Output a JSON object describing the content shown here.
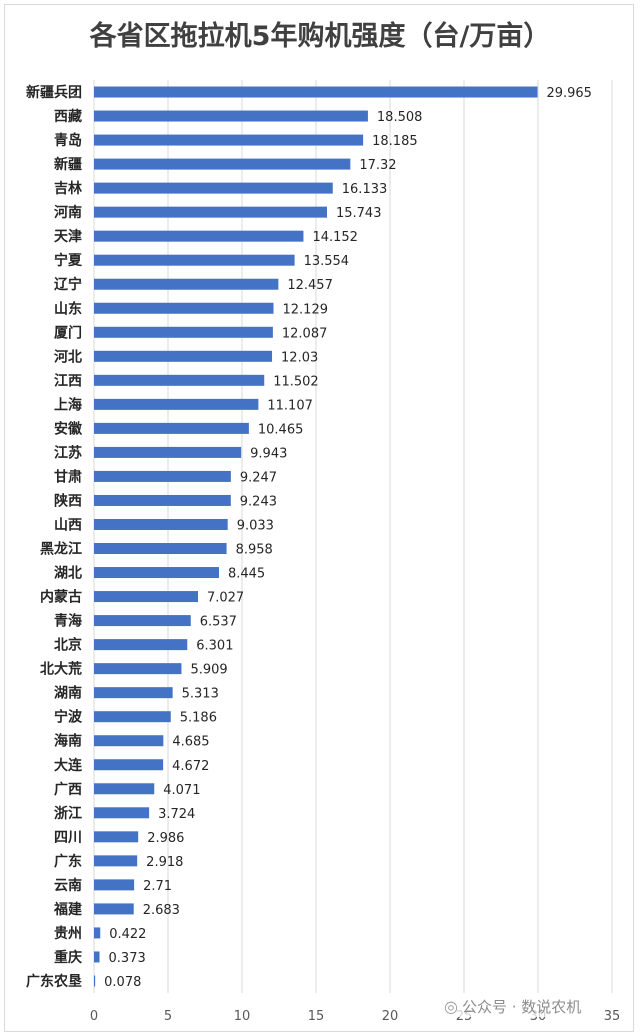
{
  "chart_data": {
    "type": "bar",
    "orientation": "horizontal",
    "title": "各省区拖拉机5年购机强度（台/万亩）",
    "categories": [
      "新疆兵团",
      "西藏",
      "青岛",
      "新疆",
      "吉林",
      "河南",
      "天津",
      "宁夏",
      "辽宁",
      "山东",
      "厦门",
      "河北",
      "江西",
      "上海",
      "安徽",
      "江苏",
      "甘肃",
      "陕西",
      "山西",
      "黑龙江",
      "湖北",
      "内蒙古",
      "青海",
      "北京",
      "北大荒",
      "湖南",
      "宁波",
      "海南",
      "大连",
      "广西",
      "浙江",
      "四川",
      "广东",
      "云南",
      "福建",
      "贵州",
      "重庆",
      "广东农垦"
    ],
    "values": [
      29.965,
      18.508,
      18.185,
      17.32,
      16.133,
      15.743,
      14.152,
      13.554,
      12.457,
      12.129,
      12.087,
      12.03,
      11.502,
      11.107,
      10.465,
      9.943,
      9.247,
      9.243,
      9.033,
      8.958,
      8.445,
      7.027,
      6.537,
      6.301,
      5.909,
      5.313,
      5.186,
      4.685,
      4.672,
      4.071,
      3.724,
      2.986,
      2.918,
      2.71,
      2.683,
      0.422,
      0.373,
      0.078
    ],
    "value_labels": [
      "29.965",
      "18.508",
      "18.185",
      "17.32",
      "16.133",
      "15.743",
      "14.152",
      "13.554",
      "12.457",
      "12.129",
      "12.087",
      "12.03",
      "11.502",
      "11.107",
      "10.465",
      "9.943",
      "9.247",
      "9.243",
      "9.033",
      "8.958",
      "8.445",
      "7.027",
      "6.537",
      "6.301",
      "5.909",
      "5.313",
      "5.186",
      "4.685",
      "4.672",
      "4.071",
      "3.724",
      "2.986",
      "2.918",
      "2.71",
      "2.683",
      "0.422",
      "0.373",
      "0.078"
    ],
    "xlim": [
      0,
      35
    ],
    "x_ticks": [
      0,
      5,
      10,
      15,
      20,
      25,
      30,
      35
    ],
    "grid": true,
    "bar_color": "#4472c4",
    "xlabel": "",
    "ylabel": ""
  },
  "watermark": {
    "icon": "wechat-icon",
    "text": "公众号 · 数说农机"
  }
}
